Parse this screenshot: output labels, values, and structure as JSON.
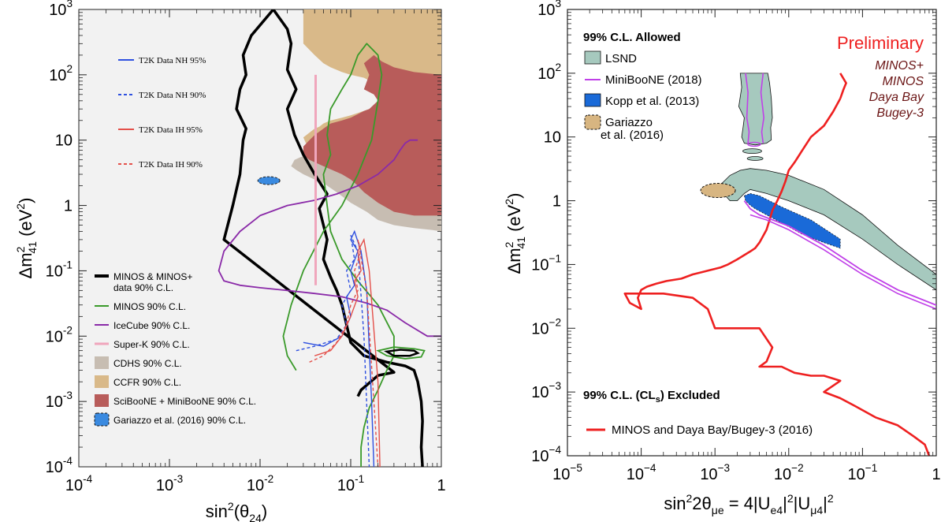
{
  "chart_data": [
    {
      "type": "line",
      "xlabel_base": "sin",
      "xlabel_sup": "2",
      "xlabel_arg": "(θ",
      "xlabel_sub": "24",
      "xlabel_end": ")",
      "ylabel_pre": "Δm",
      "ylabel_sup": "2",
      "ylabel_sub": "41",
      "ylabel_post": " (eV",
      "ylabel_sup2": "2",
      "ylabel_end": ")",
      "x_scale": "log",
      "y_scale": "log",
      "xlim": [
        0.0001,
        1
      ],
      "ylim": [
        0.0001,
        1000
      ],
      "x_tick_base": "10",
      "x_tick_exps": [
        "-4",
        "-3",
        "-2",
        "-1"
      ],
      "x_tick_last": "1",
      "y_tick_base": "10",
      "y_tick_exps": [
        "-4",
        "-3",
        "-2",
        "-1"
      ],
      "y_tick_1": "1",
      "y_tick_10": "10",
      "y_tick_exp_hi": [
        "2",
        "3"
      ],
      "legend_top": [
        {
          "label": "T2K Data NH 95%",
          "color": "#2e50e0",
          "dash": false
        },
        {
          "label": "T2K Data NH 90%",
          "color": "#2e50e0",
          "dash": true
        },
        {
          "label": "T2K Data IH 95%",
          "color": "#e4504a",
          "dash": false
        },
        {
          "label": "T2K Data IH 90%",
          "color": "#e4504a",
          "dash": true
        }
      ],
      "legend_bottom": [
        {
          "label": "MINOS & MINOS+",
          "label2": "data 90% C.L.",
          "kind": "line",
          "color": "#000000",
          "width": 4
        },
        {
          "label": "MINOS 90% C.L.",
          "kind": "line",
          "color": "#3a9a2a",
          "width": 2
        },
        {
          "label": "IceCube 90% C.L.",
          "kind": "line",
          "color": "#8a2aa8",
          "width": 2
        },
        {
          "label": "Super-K 90% C.L.",
          "kind": "line",
          "color": "#f0a6bc",
          "width": 3
        },
        {
          "label": "CDHS 90% C.L.",
          "kind": "box",
          "color": "#c7bdb2"
        },
        {
          "label": "CCFR 90% C.L.",
          "kind": "box",
          "color": "#d9b989"
        },
        {
          "label": "SciBooNE + MiniBooNE 90% C.L.",
          "kind": "box",
          "color": "#b85c5a"
        },
        {
          "label": "Gariazzo et al. (2016) 90% C.L.",
          "kind": "dashbox",
          "color": "#3a8ae0"
        }
      ],
      "series": [
        {
          "name": "MINOS & MINOS+ data 90% C.L.",
          "color": "#000000",
          "x": [
            0.12,
            0.13,
            0.2,
            0.3,
            0.004,
            0.005,
            0.006,
            0.0065,
            0.007,
            0.0055,
            0.006,
            0.007,
            0.0065,
            0.008,
            0.014,
            0.02,
            0.022,
            0.02,
            0.025,
            0.02,
            0.024,
            0.03,
            0.04,
            0.055,
            0.045,
            0.05,
            0.055,
            0.05,
            0.06,
            0.07,
            0.08,
            0.09,
            0.1,
            0.14,
            0.25,
            0.4,
            0.5,
            0.55,
            0.6,
            0.62,
            0.6,
            0.62
          ],
          "y": [
            0.0012,
            0.0015,
            0.0025,
            0.0028,
            0.3,
            1,
            3,
            10,
            15,
            30,
            60,
            100,
            200,
            400,
            1000,
            500,
            300,
            120,
            60,
            30,
            12,
            6,
            3,
            1.5,
            0.9,
            0.5,
            0.3,
            0.15,
            0.08,
            0.05,
            0.03,
            0.015,
            0.008,
            0.005,
            0.004,
            0.0035,
            0.003,
            0.002,
            0.001,
            0.0005,
            0.0002,
            0.0001
          ]
        },
        {
          "name": "MINOS 90% C.L.",
          "color": "#3a9a2a",
          "x": [
            0.025,
            0.02,
            0.018,
            0.022,
            0.03,
            0.05,
            0.08,
            0.12,
            0.17,
            0.2,
            0.22,
            0.2,
            0.15,
            0.12,
            0.1,
            0.08,
            0.06,
            0.055,
            0.06,
            0.05,
            0.055,
            0.06,
            0.08,
            0.12,
            0.2,
            0.3,
            0.3,
            0.25,
            0.2,
            0.16,
            0.14,
            0.13,
            0.13
          ],
          "y": [
            0.003,
            0.005,
            0.01,
            0.03,
            0.1,
            0.4,
            1,
            3,
            10,
            40,
            100,
            200,
            300,
            200,
            100,
            60,
            30,
            12,
            6,
            3,
            1,
            0.4,
            0.15,
            0.07,
            0.03,
            0.01,
            0.005,
            0.003,
            0.0015,
            0.0008,
            0.0004,
            0.0002,
            0.0001
          ]
        },
        {
          "name": "IceCube 90% C.L.",
          "color": "#8a2aa8",
          "x": [
            0.55,
            0.45,
            0.4,
            0.35,
            0.3,
            0.2,
            0.12,
            0.07,
            0.04,
            0.02,
            0.01,
            0.006,
            0.004,
            0.0035,
            0.004,
            0.006,
            0.01,
            0.02,
            0.04,
            0.08,
            0.15,
            0.25,
            0.4,
            0.7,
            1
          ],
          "y": [
            10,
            10,
            9,
            7,
            5,
            3,
            2,
            1.5,
            1.2,
            1,
            0.7,
            0.4,
            0.2,
            0.1,
            0.07,
            0.06,
            0.055,
            0.05,
            0.045,
            0.04,
            0.032,
            0.025,
            0.016,
            0.01,
            0.01
          ]
        },
        {
          "name": "Super-K 90% C.L.",
          "color": "#f0a6bc",
          "x": [
            0.041,
            0.041
          ],
          "y": [
            0.06,
            100
          ]
        }
      ],
      "regions": [
        {
          "name": "CCFR 90% C.L.",
          "color": "#d9b989"
        },
        {
          "name": "CDHS 90% C.L.",
          "color": "#c7bdb2"
        },
        {
          "name": "SciBooNE + MiniBooNE 90% C.L.",
          "color": "#b85c5a"
        },
        {
          "name": "Gariazzo et al. (2016) 90% C.L.",
          "color": "#3a8ae0"
        }
      ]
    },
    {
      "type": "line",
      "xlabel_pre": "sin",
      "xlabel_sup": "2",
      "xlabel_mid": "2θ",
      "xlabel_sub": "μe",
      "xlabel_eq": " = 4|U",
      "xlabel_sub2": "e4",
      "xlabel_p2": "|",
      "xlabel_sup3": "2",
      "xlabel_p3": "|U",
      "xlabel_sub4": "μ4",
      "xlabel_p4": "|",
      "xlabel_sup5": "2",
      "ylabel_pre": "Δm",
      "ylabel_sup": "2",
      "ylabel_sub": "41",
      "ylabel_post": " (eV",
      "ylabel_sup2": "2",
      "ylabel_end": ")",
      "x_scale": "log",
      "y_scale": "log",
      "xlim": [
        1e-05,
        1
      ],
      "ylim": [
        0.0001,
        1000
      ],
      "x_tick_base": "10",
      "x_tick_exps": [
        "−5",
        "−4",
        "−3",
        "−2",
        "−1"
      ],
      "x_tick_last": "1",
      "y_tick_base": "10",
      "y_tick_exps": [
        "−4",
        "−3",
        "−2",
        "−1"
      ],
      "y_tick_1": "1",
      "y_tick_10": "10",
      "y_tick_exp_hi": [
        "2",
        "3"
      ],
      "allowed_title": "99% C.L. Allowed",
      "allowed_legend": [
        {
          "label": "LSND",
          "kind": "box",
          "color": "#a6c9be"
        },
        {
          "label": "MiniBooNE (2018)",
          "kind": "line",
          "color": "#c040e8"
        },
        {
          "label": "Kopp et al. (2013)",
          "kind": "box",
          "color": "#1a6ad8"
        },
        {
          "label": "Gariazzo",
          "label2": "et al. (2016)",
          "kind": "dashbox",
          "color": "#d7b581"
        }
      ],
      "excluded_title_pre": "99% C.L. (CL",
      "excluded_title_sub": "s",
      "excluded_title_post": ") Excluded",
      "excluded_legend": {
        "label": "MINOS and Daya Bay/Bugey-3 (2016)",
        "color": "#ee2020"
      },
      "annotation_preliminary": "Preliminary",
      "annotation_lines": [
        "MINOS+",
        "MINOS",
        "Daya Bay",
        "Bugey-3"
      ],
      "series": [
        {
          "name": "MINOS and Daya Bay/Bugey-3 (2016)",
          "color": "#ee2020",
          "x": [
            0.05,
            0.04,
            0.03,
            0.02,
            0.015,
            0.012,
            0.01,
            0.009,
            0.008,
            0.007,
            0.006,
            0.0055,
            0.005,
            0.0045,
            0.004,
            0.0035,
            0.003,
            0.002,
            0.0015,
            0.0012,
            0.0008,
            0.0005,
            0.00035,
            0.00022,
            0.00016,
            0.00012,
            0.0001,
            9e-05,
            0.0001,
            7e-05,
            6e-05,
            0.0002,
            0.0005,
            0.0008,
            0.001,
            0.004,
            0.006,
            0.005,
            0.004,
            0.008,
            0.012,
            0.02,
            0.03,
            0.05,
            0.03,
            0.05,
            0.08,
            0.15,
            0.3,
            0.5,
            0.7,
            0.8
          ],
          "y": [
            40,
            25,
            15,
            10,
            6,
            4,
            3,
            2,
            1.4,
            1,
            0.7,
            0.5,
            0.35,
            0.28,
            0.22,
            0.18,
            0.16,
            0.12,
            0.1,
            0.09,
            0.08,
            0.07,
            0.06,
            0.055,
            0.05,
            0.045,
            0.04,
            0.03,
            0.02,
            0.025,
            0.035,
            0.035,
            0.03,
            0.02,
            0.01,
            0.01,
            0.005,
            0.003,
            0.0025,
            0.0025,
            0.002,
            0.0018,
            0.0018,
            0.0015,
            0.001,
            0.0008,
            0.0006,
            0.0004,
            0.0003,
            0.0002,
            0.00015,
            0.0001
          ]
        },
        {
          "name": "MiniBooNE (2018)",
          "color": "#c040e8",
          "x": [
            0.0025,
            0.003,
            0.004,
            0.01,
            0.03,
            0.1,
            0.3,
            1
          ],
          "y": [
            1,
            0.75,
            0.6,
            0.4,
            0.2,
            0.08,
            0.04,
            0.023
          ]
        }
      ],
      "regions": [
        {
          "name": "LSND",
          "color": "#a6c9be"
        },
        {
          "name": "Kopp et al. (2013)",
          "color": "#1a6ad8"
        },
        {
          "name": "Gariazzo et al. (2016)",
          "color": "#d7b581"
        }
      ]
    }
  ]
}
